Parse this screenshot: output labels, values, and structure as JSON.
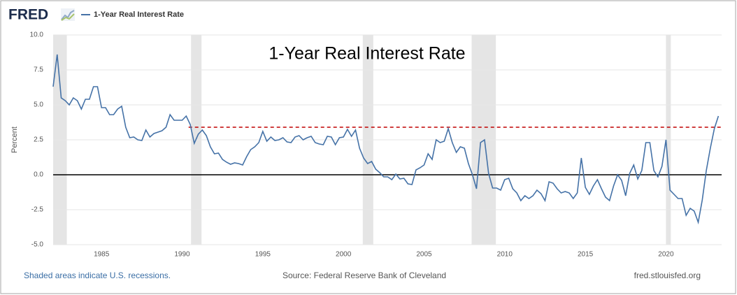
{
  "logo": "FRED",
  "chart_data": {
    "type": "line",
    "annotation": "1-Year Real Interest Rate",
    "y_label": "Percent",
    "series": [
      {
        "name": "1-Year Real Interest Rate",
        "color": "#4572a7",
        "values": [
          6.3,
          8.6,
          5.5,
          5.3,
          5.0,
          5.5,
          5.3,
          4.7,
          5.4,
          5.4,
          6.3,
          6.3,
          4.8,
          4.8,
          4.3,
          4.3,
          4.7,
          4.9,
          3.4,
          2.65,
          2.7,
          2.5,
          2.45,
          3.2,
          2.7,
          2.95,
          3.05,
          3.15,
          3.4,
          4.3,
          3.9,
          3.9,
          3.9,
          4.2,
          3.6,
          2.25,
          2.9,
          3.2,
          2.8,
          2.0,
          1.5,
          1.55,
          1.1,
          0.9,
          0.75,
          0.85,
          0.8,
          0.7,
          1.3,
          1.8,
          2.0,
          2.3,
          3.1,
          2.4,
          2.7,
          2.45,
          2.5,
          2.65,
          2.35,
          2.3,
          2.7,
          2.8,
          2.5,
          2.65,
          2.75,
          2.3,
          2.2,
          2.15,
          2.75,
          2.7,
          2.15,
          2.65,
          2.7,
          3.25,
          2.75,
          3.2,
          1.9,
          1.2,
          0.8,
          0.95,
          0.4,
          0.15,
          -0.15,
          -0.15,
          -0.35,
          0.05,
          -0.3,
          -0.25,
          -0.65,
          -0.7,
          0.35,
          0.5,
          0.7,
          1.5,
          1.1,
          2.5,
          2.3,
          2.4,
          3.3,
          2.3,
          1.6,
          2.0,
          1.9,
          0.8,
          0,
          -1.0,
          2.3,
          2.5,
          0.1,
          -0.95,
          -0.95,
          -1.1,
          -0.35,
          -0.25,
          -1.0,
          -1.3,
          -1.85,
          -1.5,
          -1.7,
          -1.5,
          -1.1,
          -1.35,
          -1.85,
          -0.5,
          -0.6,
          -1.0,
          -1.3,
          -1.2,
          -1.3,
          -1.7,
          -1.3,
          1.2,
          -0.9,
          -1.4,
          -0.8,
          -0.35,
          -1.0,
          -1.6,
          -1.85,
          -0.8,
          0,
          -0.4,
          -1.5,
          0.1,
          0.7,
          -0.3,
          0.3,
          2.3,
          2.3,
          0.3,
          -0.15,
          0.6,
          2.5,
          -1.1,
          -1.4,
          -1.7,
          -1.7,
          -2.9,
          -2.4,
          -2.6,
          -3.4,
          -1.8,
          0.3,
          1.9,
          3.3,
          4.2
        ]
      }
    ],
    "x": [
      1982,
      1982.25,
      1982.5,
      1982.75,
      1983,
      1983.25,
      1983.5,
      1983.75,
      1984,
      1984.25,
      1984.5,
      1984.75,
      1985,
      1985.25,
      1985.5,
      1985.75,
      1986,
      1986.25,
      1986.5,
      1986.75,
      1987,
      1987.25,
      1987.5,
      1987.75,
      1988,
      1988.25,
      1988.5,
      1988.75,
      1989,
      1989.25,
      1989.5,
      1989.75,
      1990,
      1990.25,
      1990.5,
      1990.75,
      1991,
      1991.25,
      1991.5,
      1991.75,
      1992,
      1992.25,
      1992.5,
      1992.75,
      1993,
      1993.25,
      1993.5,
      1993.75,
      1994,
      1994.25,
      1994.5,
      1994.75,
      1995,
      1995.25,
      1995.5,
      1995.75,
      1996,
      1996.25,
      1996.5,
      1996.75,
      1997,
      1997.25,
      1997.5,
      1997.75,
      1998,
      1998.25,
      1998.5,
      1998.75,
      1999,
      1999.25,
      1999.5,
      1999.75,
      2000,
      2000.25,
      2000.5,
      2000.75,
      2001,
      2001.25,
      2001.5,
      2001.75,
      2002,
      2002.25,
      2002.5,
      2002.75,
      2003,
      2003.25,
      2003.5,
      2003.75,
      2004,
      2004.25,
      2004.5,
      2004.75,
      2005,
      2005.25,
      2005.5,
      2005.75,
      2006,
      2006.25,
      2006.5,
      2006.75,
      2007,
      2007.25,
      2007.5,
      2007.75,
      2008,
      2008.25,
      2008.5,
      2008.75,
      2009,
      2009.25,
      2009.5,
      2009.75,
      2010,
      2010.25,
      2010.5,
      2010.75,
      2011,
      2011.25,
      2011.5,
      2011.75,
      2012,
      2012.25,
      2012.5,
      2012.75,
      2013,
      2013.25,
      2013.5,
      2013.75,
      2014,
      2014.25,
      2014.5,
      2014.75,
      2015,
      2015.25,
      2015.5,
      2015.75,
      2016,
      2016.25,
      2016.5,
      2016.75,
      2017,
      2017.25,
      2017.5,
      2017.75,
      2018,
      2018.25,
      2018.5,
      2018.75,
      2019,
      2019.25,
      2019.5,
      2019.75,
      2020,
      2020.25,
      2020.5,
      2020.75,
      2021,
      2021.25,
      2021.5,
      2021.75,
      2022,
      2022.25,
      2022.5,
      2022.75,
      2023,
      2023.25
    ],
    "xlim": [
      1982,
      2023.45
    ],
    "xticks": [
      1985,
      1990,
      1995,
      2000,
      2005,
      2010,
      2015,
      2020
    ],
    "ylim": [
      -5,
      10
    ],
    "yticks": [
      {
        "value": -5,
        "label": "-5.0"
      },
      -2.5,
      {
        "value": 0,
        "label": "0.0"
      },
      2.5,
      {
        "value": 5,
        "label": "5.0"
      },
      {
        "value": 7.5,
        "label": "7.5"
      },
      {
        "value": 10,
        "label": "10.0"
      }
    ],
    "grid": true,
    "baseline": 0,
    "reference_line": {
      "value": 3.4,
      "x_start": 1990.4,
      "color": "#c00000"
    },
    "recessions": [
      [
        1982,
        1982.85
      ],
      [
        1990.55,
        1991.2
      ],
      [
        2001.2,
        2001.85
      ],
      [
        2007.95,
        2009.45
      ],
      [
        2020.0,
        2020.3
      ]
    ],
    "recession_color": "#e5e5e5",
    "note": "Shaded areas indicate U.S. recessions.",
    "source": "Source: Federal Reserve Bank of Cleveland",
    "site": "fred.stlouisfed.org"
  }
}
